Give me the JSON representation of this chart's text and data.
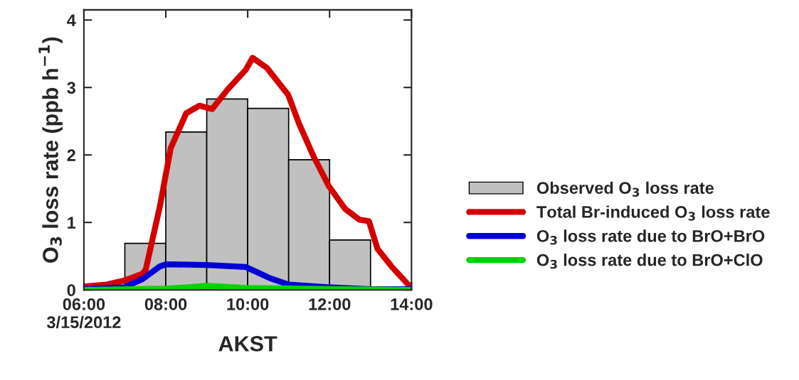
{
  "chart_data": {
    "type": "histogram",
    "xlabel": "AKST",
    "ylabel": "O$_{3}$ loss rate (ppb h$^{−1}$)",
    "xlim": [
      6,
      14
    ],
    "xticks": [
      {
        "value": 6,
        "label": "06:00\n3/15/2012"
      },
      {
        "value": 8,
        "label": "08:00"
      },
      {
        "value": 10,
        "label": "10:00"
      },
      {
        "value": 12,
        "label": "12:00"
      },
      {
        "value": 14,
        "label": "14:00"
      }
    ],
    "ylim": [
      0,
      4.15
    ],
    "yticks": [
      0,
      1,
      2,
      3,
      4
    ],
    "grid": false,
    "legend": "right",
    "series": [
      {
        "type": "histogram",
        "name": "Observed O$_{3}$ loss rate",
        "color": "#c0c0c0",
        "bins": [
          7,
          8,
          9,
          10,
          11,
          12,
          13
        ],
        "values": [
          0.69,
          2.34,
          2.83,
          2.69,
          1.93,
          0.74
        ]
      },
      {
        "type": "line",
        "name": "Total Br-induced O$_{3}$ loss rate",
        "color": "#d40000",
        "x": [
          6.0,
          6.56,
          6.99,
          7.43,
          7.51,
          7.86,
          8.12,
          8.5,
          8.82,
          9.13,
          9.51,
          9.95,
          10.12,
          10.47,
          10.99,
          11.25,
          11.6,
          11.98,
          12.38,
          12.73,
          12.96,
          13.17,
          13.51,
          13.95
        ],
        "values": [
          0.05,
          0.08,
          0.14,
          0.24,
          0.3,
          1.25,
          2.1,
          2.62,
          2.73,
          2.68,
          2.97,
          3.26,
          3.44,
          3.29,
          2.89,
          2.47,
          1.99,
          1.54,
          1.2,
          1.04,
          1.02,
          0.61,
          0.35,
          0.06
        ]
      },
      {
        "type": "line",
        "name": "O$_{3}$ loss rate due to BrO+BrO",
        "color": "#0000d4",
        "x": [
          6.0,
          6.99,
          7.43,
          7.86,
          8.0,
          9.0,
          9.95,
          10.56,
          11.0,
          11.95,
          13.0,
          14.0
        ],
        "values": [
          0.01,
          0.04,
          0.16,
          0.35,
          0.38,
          0.37,
          0.34,
          0.17,
          0.08,
          0.04,
          0.01,
          0.01
        ]
      },
      {
        "type": "line",
        "name": "O$_{3}$ loss rate due to BrO+ClO",
        "color": "#00d400",
        "x": [
          6.0,
          8.0,
          8.56,
          9.0,
          9.95,
          14.0
        ],
        "values": [
          0.0,
          0.02,
          0.04,
          0.06,
          0.03,
          0.0
        ]
      }
    ]
  }
}
